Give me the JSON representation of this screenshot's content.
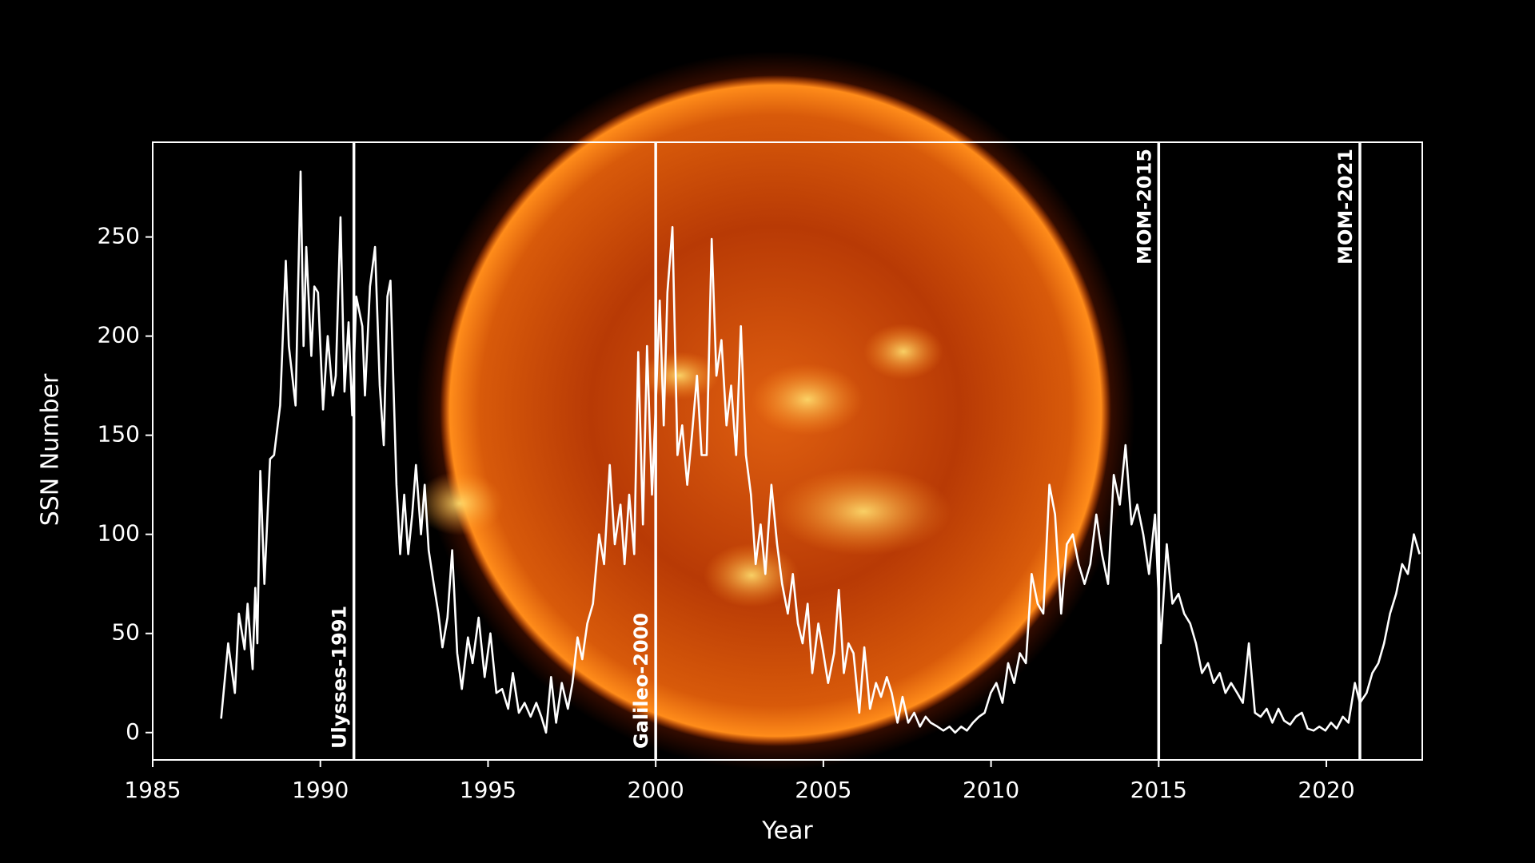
{
  "chart_data": {
    "type": "line",
    "xlabel": "Year",
    "ylabel": "SSN Number",
    "xlim": [
      1985,
      2022.86
    ],
    "ylim": [
      -13.8,
      297.8
    ],
    "xticks": [
      1985,
      1990,
      1995,
      2000,
      2005,
      2010,
      2015,
      2020
    ],
    "yticks": [
      0,
      50,
      100,
      150,
      200,
      250
    ],
    "grid": false,
    "markers": [
      {
        "x": 1991,
        "label": "Ulysses-1991",
        "label_position": "bottom"
      },
      {
        "x": 2000,
        "label": "Galileo-2000",
        "label_position": "bottom"
      },
      {
        "x": 2015,
        "label": "MOM-2015",
        "label_position": "top"
      },
      {
        "x": 2021,
        "label": "MOM-2021",
        "label_position": "top"
      }
    ],
    "series": [
      {
        "color": "#ffffff",
        "x": [
          1987.04,
          1987.25,
          1987.45,
          1987.57,
          1987.74,
          1987.83,
          1987.98,
          1988.06,
          1988.12,
          1988.21,
          1988.33,
          1988.5,
          1988.62,
          1988.8,
          1988.97,
          1989.06,
          1989.26,
          1989.41,
          1989.5,
          1989.58,
          1989.73,
          1989.82,
          1989.93,
          1990.08,
          1990.22,
          1990.37,
          1990.46,
          1990.6,
          1990.72,
          1990.84,
          1990.95,
          1991.07,
          1991.25,
          1991.33,
          1991.48,
          1991.63,
          1991.77,
          1991.89,
          1992.0,
          1992.09,
          1992.18,
          1992.27,
          1992.38,
          1992.5,
          1992.62,
          1992.74,
          1992.85,
          1993.0,
          1993.11,
          1993.23,
          1993.38,
          1993.52,
          1993.64,
          1993.79,
          1993.93,
          1994.08,
          1994.22,
          1994.4,
          1994.54,
          1994.72,
          1994.9,
          1995.07,
          1995.25,
          1995.42,
          1995.6,
          1995.74,
          1995.92,
          1996.09,
          1996.27,
          1996.44,
          1996.59,
          1996.73,
          1996.88,
          1997.03,
          1997.2,
          1997.38,
          1997.52,
          1997.67,
          1997.81,
          1997.96,
          1998.13,
          1998.31,
          1998.46,
          1998.63,
          1998.78,
          1998.95,
          1999.07,
          1999.21,
          1999.36,
          1999.48,
          1999.62,
          1999.74,
          1999.89,
          2000.0,
          2000.12,
          2000.24,
          2000.35,
          2000.5,
          2000.65,
          2000.79,
          2000.94,
          2001.08,
          2001.23,
          2001.37,
          2001.52,
          2001.67,
          2001.81,
          2001.96,
          2002.11,
          2002.25,
          2002.4,
          2002.54,
          2002.69,
          2002.84,
          2002.98,
          2003.13,
          2003.27,
          2003.45,
          2003.62,
          2003.77,
          2003.94,
          2004.09,
          2004.24,
          2004.38,
          2004.53,
          2004.67,
          2004.85,
          2005.0,
          2005.14,
          2005.32,
          2005.46,
          2005.61,
          2005.75,
          2005.9,
          2006.07,
          2006.22,
          2006.39,
          2006.57,
          2006.72,
          2006.89,
          2007.04,
          2007.21,
          2007.36,
          2007.53,
          2007.71,
          2007.88,
          2008.05,
          2008.2,
          2008.4,
          2008.58,
          2008.76,
          2008.93,
          2009.11,
          2009.28,
          2009.46,
          2009.64,
          2009.81,
          2009.99,
          2010.16,
          2010.34,
          2010.51,
          2010.69,
          2010.86,
          2011.04,
          2011.21,
          2011.39,
          2011.56,
          2011.74,
          2011.91,
          2012.09,
          2012.26,
          2012.44,
          2012.61,
          2012.79,
          2012.96,
          2013.14,
          2013.31,
          2013.49,
          2013.66,
          2013.84,
          2014.01,
          2014.19,
          2014.36,
          2014.54,
          2014.71,
          2014.89,
          2015.06,
          2015.24,
          2015.41,
          2015.59,
          2015.76,
          2015.94,
          2016.11,
          2016.29,
          2016.47,
          2016.64,
          2016.82,
          2016.99,
          2017.16,
          2017.34,
          2017.51,
          2017.69,
          2017.87,
          2018.04,
          2018.22,
          2018.39,
          2018.57,
          2018.74,
          2018.92,
          2019.09,
          2019.27,
          2019.44,
          2019.62,
          2019.79,
          2019.97,
          2020.14,
          2020.31,
          2020.49,
          2020.66,
          2020.85,
          2021.0,
          2021.2,
          2021.37,
          2021.55,
          2021.72,
          2021.9,
          2022.08,
          2022.26,
          2022.43,
          2022.61,
          2022.78
        ],
        "values": [
          7,
          45,
          20,
          60,
          42,
          65,
          32,
          73,
          45,
          132,
          75,
          138,
          140,
          165,
          238,
          195,
          165,
          283,
          195,
          245,
          190,
          225,
          222,
          163,
          200,
          170,
          180,
          260,
          172,
          207,
          160,
          220,
          205,
          170,
          225,
          245,
          175,
          145,
          220,
          228,
          175,
          125,
          90,
          120,
          90,
          110,
          135,
          100,
          125,
          92,
          75,
          60,
          43,
          58,
          92,
          40,
          22,
          48,
          35,
          58,
          28,
          50,
          20,
          22,
          12,
          30,
          10,
          15,
          8,
          15,
          8,
          0,
          28,
          5,
          25,
          12,
          25,
          48,
          37,
          55,
          65,
          100,
          85,
          135,
          95,
          115,
          85,
          120,
          90,
          192,
          105,
          195,
          120,
          165,
          218,
          155,
          222,
          255,
          140,
          155,
          125,
          150,
          180,
          140,
          140,
          249,
          180,
          198,
          155,
          175,
          140,
          205,
          140,
          120,
          85,
          105,
          80,
          125,
          95,
          75,
          60,
          80,
          55,
          45,
          65,
          30,
          55,
          40,
          25,
          40,
          72,
          30,
          45,
          40,
          10,
          43,
          12,
          25,
          18,
          28,
          20,
          5,
          18,
          5,
          10,
          3,
          8,
          5,
          3,
          1,
          3,
          0,
          3,
          1,
          5,
          8,
          10,
          20,
          25,
          15,
          35,
          25,
          40,
          35,
          80,
          65,
          60,
          125,
          110,
          60,
          95,
          100,
          85,
          75,
          85,
          110,
          90,
          75,
          130,
          115,
          145,
          105,
          115,
          100,
          80,
          110,
          45,
          95,
          65,
          70,
          60,
          55,
          45,
          30,
          35,
          25,
          30,
          20,
          25,
          20,
          15,
          45,
          10,
          8,
          12,
          5,
          12,
          6,
          4,
          8,
          10,
          2,
          1,
          3,
          1,
          5,
          2,
          8,
          5,
          25,
          15,
          20,
          30,
          35,
          45,
          60,
          70,
          85,
          80,
          100,
          90
        ]
      }
    ]
  }
}
